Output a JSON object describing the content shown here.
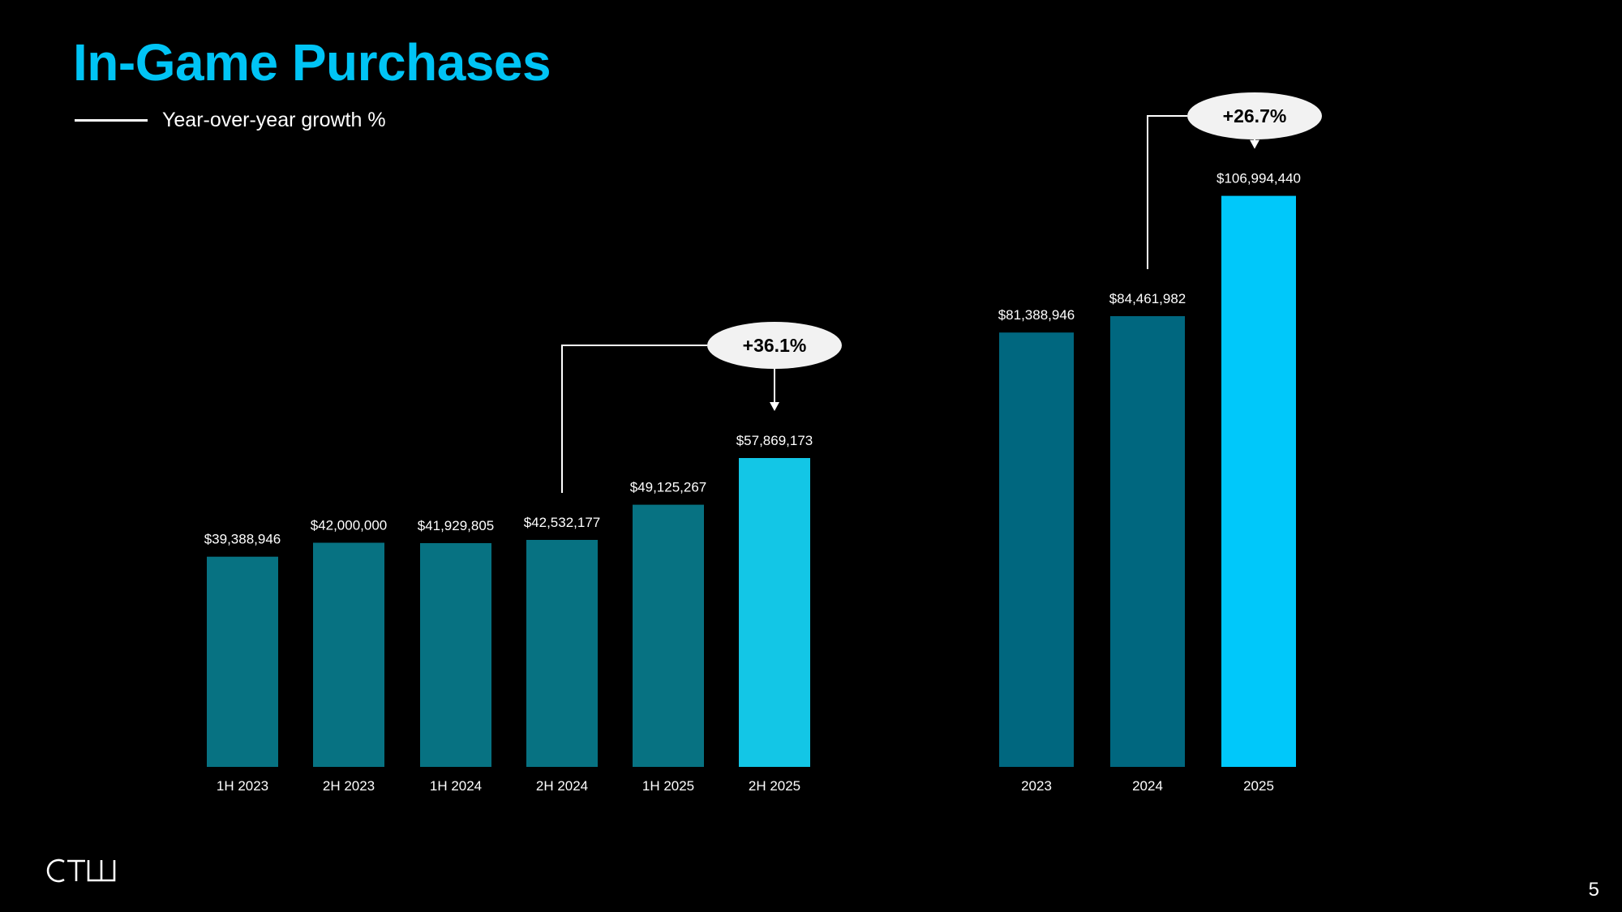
{
  "slide": {
    "title": "In-Game Purchases",
    "legend_label": "Year-over-year growth %",
    "page_number": "5",
    "logo_text": "CTW"
  },
  "colors": {
    "background": "#000000",
    "title": "#00c4f5",
    "half_year_bar": "#077282",
    "half_year_highlight": "#13c6e6",
    "annual_bar": "#00677f",
    "annual_highlight": "#00c8fa",
    "callout_fill": "#f2f2f2",
    "connector": "#ffffff"
  },
  "chart_data": [
    {
      "type": "bar",
      "categories": [
        "1H 2023",
        "2H 2023",
        "1H 2024",
        "2H 2024",
        "1H 2025",
        "2H 2025"
      ],
      "values": [
        39388946,
        42000000,
        41929805,
        42532177,
        49125267,
        57869173
      ],
      "data_labels": [
        "$39,388,946",
        "$42,000,000",
        "$41,929,805",
        "$42,532,177",
        "$49,125,267",
        "$57,869,173"
      ],
      "highlight_index": 5,
      "annotation": {
        "label": "+36.1%",
        "from_index": 3,
        "to_index": 5
      },
      "grid": false
    },
    {
      "type": "bar",
      "categories": [
        "2023",
        "2024",
        "2025"
      ],
      "values": [
        81388946,
        84461982,
        106994440
      ],
      "data_labels": [
        "$81,388,946",
        "$84,461,982",
        "$106,994,440"
      ],
      "highlight_index": 2,
      "annotation": {
        "label": "+26.7%",
        "from_index": 1,
        "to_index": 2
      },
      "grid": false
    }
  ]
}
